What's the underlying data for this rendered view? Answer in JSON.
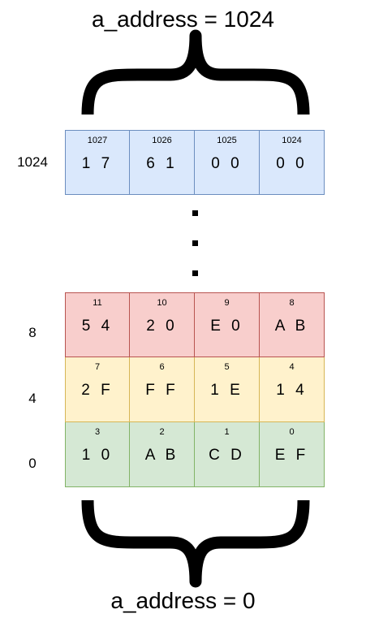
{
  "top_label": "a_address = 1024",
  "bottom_label": "a_address = 0",
  "rows": [
    {
      "address": "1024",
      "cells": [
        {
          "index": "1027",
          "value": "1 7"
        },
        {
          "index": "1026",
          "value": "6 1"
        },
        {
          "index": "1025",
          "value": "0 0"
        },
        {
          "index": "1024",
          "value": "0 0"
        }
      ]
    },
    {
      "address": "8",
      "cells": [
        {
          "index": "11",
          "value": "5 4"
        },
        {
          "index": "10",
          "value": "2 0"
        },
        {
          "index": "9",
          "value": "E 0"
        },
        {
          "index": "8",
          "value": "A B"
        }
      ]
    },
    {
      "address": "4",
      "cells": [
        {
          "index": "7",
          "value": "2 F"
        },
        {
          "index": "6",
          "value": "F F"
        },
        {
          "index": "5",
          "value": "1 E"
        },
        {
          "index": "4",
          "value": "1 4"
        }
      ]
    },
    {
      "address": "0",
      "cells": [
        {
          "index": "3",
          "value": "1 0"
        },
        {
          "index": "2",
          "value": "A B"
        },
        {
          "index": "1",
          "value": "C D"
        },
        {
          "index": "0",
          "value": "E F"
        }
      ]
    }
  ],
  "colors": {
    "blue_fill": "#dae8fc",
    "blue_stroke": "#6c8ebf",
    "red_fill": "#f8cecc",
    "red_stroke": "#b85450",
    "yellow_fill": "#fff2cc",
    "yellow_stroke": "#d6b656",
    "green_fill": "#d5e8d4",
    "green_stroke": "#82b366"
  }
}
